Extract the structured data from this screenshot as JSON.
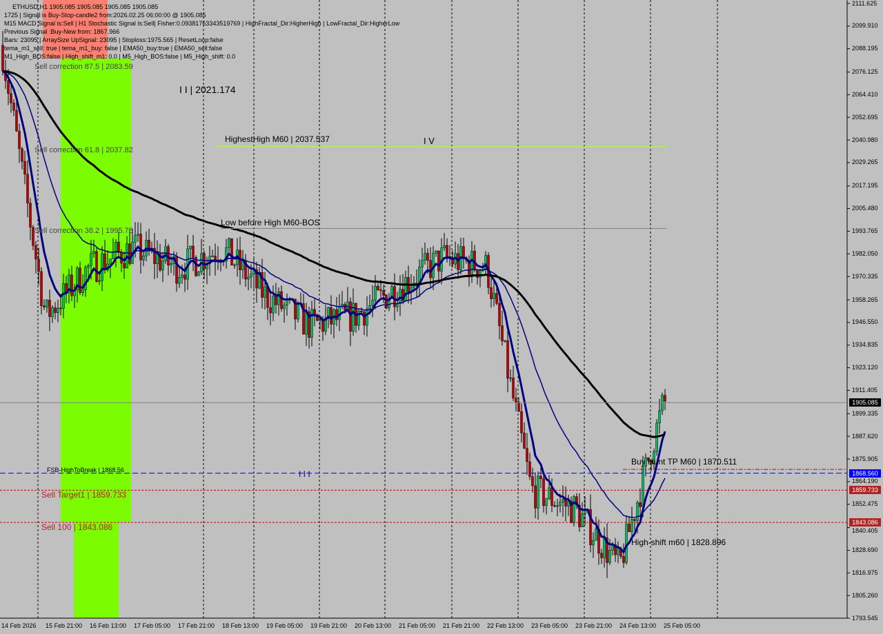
{
  "header": {
    "symbol_line": "ETHUSD,H1  1905.085 1905.085 1905.085 1905.085",
    "info_lines": [
      "1725 | Signal is Buy-Stop-candle2 from:2026.02.25 06:00:00 @ 1905.085",
      "M15 MACD Signal is:Sell | H1 Stochastic Signal is:Sell| Fisher:0.09381763343519769 | HighFractal_Dir:HigherHigh | LowFractal_Dir:HigherLow",
      "Previous Signal :Buy-New from: 1867.966",
      "Bars: 23095 | ArraySize UpSignal: 23095 | Stoploss:1975.565 | ResetLoop:false",
      "tema_m1_sell: true | tema_m1_buy: false | EMA50_buy:true | EMA50_sell:false",
      "M1_High_BOS:false | High_shift_m1: 0.0 | M5_High_BOS:false | M5_High_shift: 0.0"
    ]
  },
  "colors": {
    "background": "#c0c0c0",
    "bull": "#00c060",
    "bear": "#c00000",
    "ema_fast": "#000080",
    "ema_slow": "#000000",
    "zone": "#7cfc00",
    "info_box": "#fa8072",
    "blue_line": "#0000ff",
    "red_line": "#c00000",
    "orange_band": "#ff4500",
    "blue_band": "#6495ed"
  },
  "chart_data": {
    "type": "candlestick",
    "title": "ETHUSD,H1",
    "ylim": [
      1793.545,
      2111.625
    ],
    "y_ticks": [
      "2111.625",
      "2099.910",
      "2088.195",
      "2076.125",
      "2064.410",
      "2052.695",
      "2040.980",
      "2029.265",
      "2017.195",
      "2005.480",
      "1993.765",
      "1982.050",
      "1970.335",
      "1958.265",
      "1946.550",
      "1934.835",
      "1923.120",
      "1911.405",
      "1899.335",
      "1887.620",
      "1875.905",
      "1864.190",
      "1852.475",
      "1840.405",
      "1828.690",
      "1816.975",
      "1805.260",
      "1793.545"
    ],
    "x_ticks": [
      "14 Feb 2026",
      "15 Feb 21:00",
      "16 Feb 13:00",
      "17 Feb 05:00",
      "17 Feb 21:00",
      "18 Feb 13:00",
      "19 Feb 05:00",
      "19 Feb 21:00",
      "20 Feb 13:00",
      "21 Feb 05:00",
      "21 Feb 21:00",
      "22 Feb 13:00",
      "23 Feb 05:00",
      "23 Feb 21:00",
      "24 Feb 13:00",
      "25 Feb 05:00"
    ],
    "close_path": [
      [
        "14 Feb 2026",
        2090
      ],
      [
        "15 Feb 21:00",
        1950
      ],
      [
        "16 Feb 13:00",
        1975
      ],
      [
        "17 Feb 05:00",
        1985
      ],
      [
        "17 Feb 21:00",
        1975
      ],
      [
        "18 Feb 13:00",
        1985
      ],
      [
        "19 Feb 05:00",
        1960
      ],
      [
        "19 Feb 21:00",
        1945
      ],
      [
        "20 Feb 13:00",
        1950
      ],
      [
        "21 Feb 05:00",
        1965
      ],
      [
        "21 Feb 21:00",
        1980
      ],
      [
        "22 Feb 13:00",
        1975
      ],
      [
        "23 Feb 05:00",
        1860
      ],
      [
        "23 Feb 21:00",
        1850
      ],
      [
        "24 Feb 13:00",
        1820
      ],
      [
        "25 Feb 05:00",
        1905
      ]
    ],
    "last_price": "1905.085",
    "levels": [
      {
        "name": "highest-high",
        "label": "HighestHigh    M60 | 2037.537",
        "price": 2037.537,
        "color": "#adff2f",
        "style": "solid"
      },
      {
        "name": "low-before-high",
        "label": "Low before High   M60-BOS",
        "price": 1995.2,
        "color": "#808080",
        "style": "solid"
      },
      {
        "name": "fsb-high-to-break",
        "label": "FSB-HighToBreak  | 1868.56",
        "price": 1868.56,
        "color": "#0000ff",
        "style": "dashed"
      },
      {
        "name": "sell-target1",
        "label": "Sell Target1 | 1859.733",
        "price": 1859.733,
        "color": "#c00000",
        "style": "dotted"
      },
      {
        "name": "sell-100",
        "label": "Sell 100 | 1843.086",
        "price": 1843.086,
        "color": "#c00000",
        "style": "dotted"
      },
      {
        "name": "last-price",
        "label": "",
        "price": 1905.085,
        "color": "#808080",
        "style": "solid"
      }
    ],
    "annotations": {
      "sell_corr_875": "Sell correction 87.5 | 2083.59",
      "sell_corr_618": "Sell correction 61.8 | 2037.82",
      "sell_corr_382": "Sell correction 38.2 | 1995.78",
      "wave2": "I I | 2021.174",
      "wave4": "I V",
      "wave3": "I I I",
      "buy_hunt": "Buy Hunt  TP M60 | 1870.511",
      "high_shift": "High-shift m60 | 1828.896"
    },
    "price_tags": [
      {
        "value": "1905.085",
        "bg": "#000000",
        "price": 1905.085
      },
      {
        "value": "1868.560",
        "bg": "#0000ff",
        "price": 1868.56
      },
      {
        "value": "1859.733",
        "bg": "#b22222",
        "price": 1859.733
      },
      {
        "value": "1843.086",
        "bg": "#b22222",
        "price": 1843.086
      }
    ]
  }
}
